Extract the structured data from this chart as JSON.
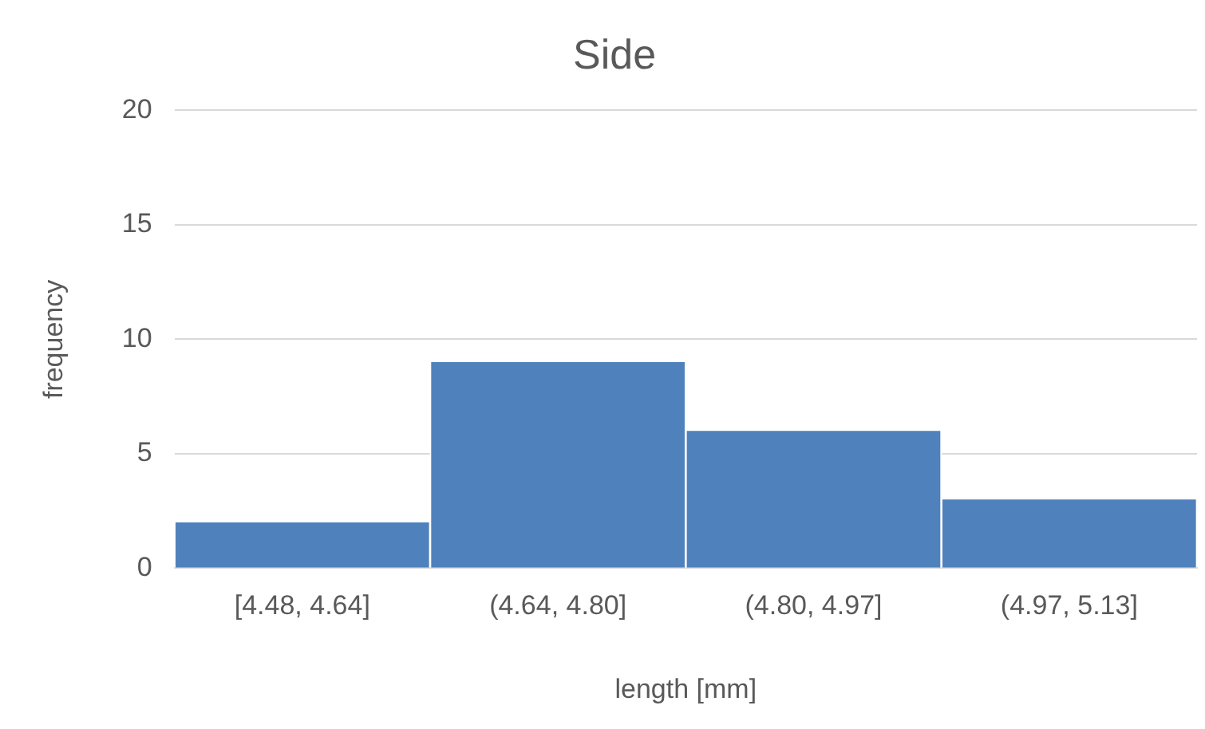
{
  "chart_data": {
    "type": "bar",
    "title": "Side",
    "xlabel": "length [mm]",
    "ylabel": "frequency",
    "categories": [
      "[4.48, 4.64]",
      "(4.64, 4.80]",
      "(4.80, 4.97]",
      "(4.97, 5.13]"
    ],
    "values": [
      2,
      9,
      6,
      3
    ],
    "color": "#4f81bd",
    "ylim": [
      0,
      20
    ],
    "yticks": [
      0,
      5,
      10,
      15,
      20
    ],
    "grid": "y"
  }
}
